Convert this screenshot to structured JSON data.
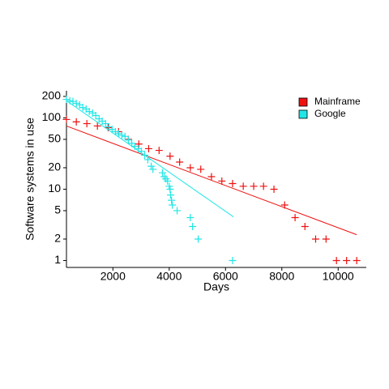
{
  "chart_data": {
    "type": "scatter",
    "xlabel": "Days",
    "ylabel": "Software systems in use",
    "xlim": [
      350,
      11000
    ],
    "xticks": [
      2000,
      4000,
      6000,
      8000,
      10000
    ],
    "ylim": [
      0.8,
      240
    ],
    "yticks": [
      1,
      2,
      5,
      10,
      20,
      50,
      100,
      200
    ],
    "ylog": true,
    "legend": "top-right",
    "series": [
      {
        "name": "Mainframe",
        "color": "#ee1111",
        "x": [
          350,
          700,
          1075,
          1450,
          1830,
          2200,
          2550,
          2920,
          3270,
          3640,
          4030,
          4370,
          4750,
          5120,
          5500,
          5870,
          6250,
          6630,
          7000,
          7350,
          7720,
          8100,
          8470,
          8820,
          9200,
          9570,
          9940,
          10300,
          10660
        ],
        "values": [
          95,
          88,
          83,
          77,
          73,
          64,
          50,
          43,
          37,
          35,
          29,
          24,
          20,
          19,
          15,
          13,
          12,
          11,
          11,
          11,
          10,
          6,
          4,
          3,
          2,
          2,
          1,
          1,
          1
        ],
        "fit_x": [
          350,
          10660
        ],
        "fit_y": [
          77,
          2.3
        ]
      },
      {
        "name": "Google",
        "color": "#22e6e6",
        "x": [
          350,
          470,
          580,
          700,
          820,
          930,
          1050,
          1160,
          1280,
          1390,
          1510,
          1620,
          1740,
          1860,
          1970,
          2090,
          2200,
          2320,
          2430,
          2550,
          2670,
          2780,
          2900,
          3010,
          3130,
          3240,
          3360,
          3420,
          3760,
          3820,
          3880,
          3940,
          4000,
          4030,
          4050,
          4080,
          4110,
          4280,
          4750,
          4830,
          5030,
          6250
        ],
        "values": [
          182,
          174,
          170,
          160,
          152,
          140,
          133,
          123,
          117,
          108,
          97,
          90,
          83,
          75,
          69,
          64,
          60,
          57,
          55,
          49,
          44,
          40,
          37,
          34,
          30,
          26,
          21,
          19,
          17,
          15,
          14,
          13,
          11,
          10,
          8.3,
          7,
          6,
          5,
          4,
          3,
          2,
          1
        ],
        "fit_x": [
          350,
          6280
        ],
        "fit_y": [
          174,
          4.1
        ]
      }
    ]
  }
}
